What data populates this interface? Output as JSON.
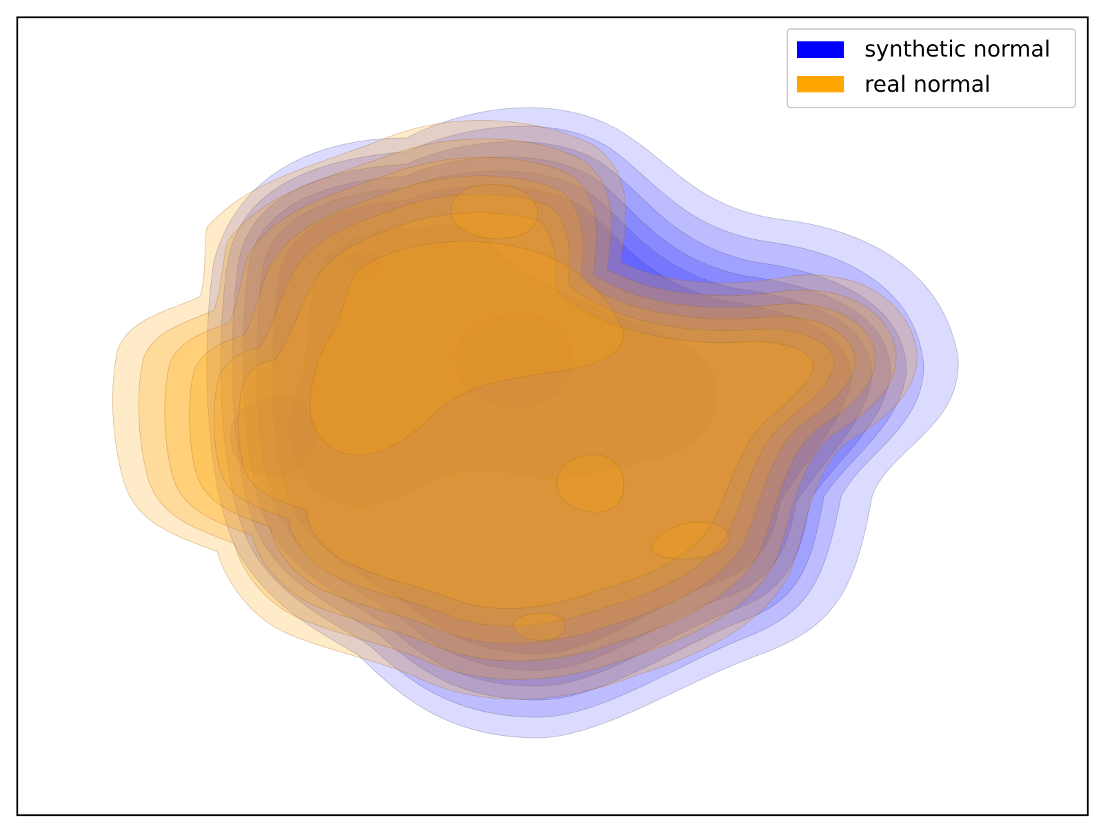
{
  "chart_data": {
    "type": "density-contour",
    "title": "",
    "xlabel": "",
    "ylabel": "",
    "grid": false,
    "ticks_visible": false,
    "legend_position": "top-right",
    "series": [
      {
        "name": "synthetic normal",
        "color": "#0000ff",
        "levels": 10
      },
      {
        "name": "real normal",
        "color": "#ffa500",
        "levels": 10
      }
    ]
  }
}
